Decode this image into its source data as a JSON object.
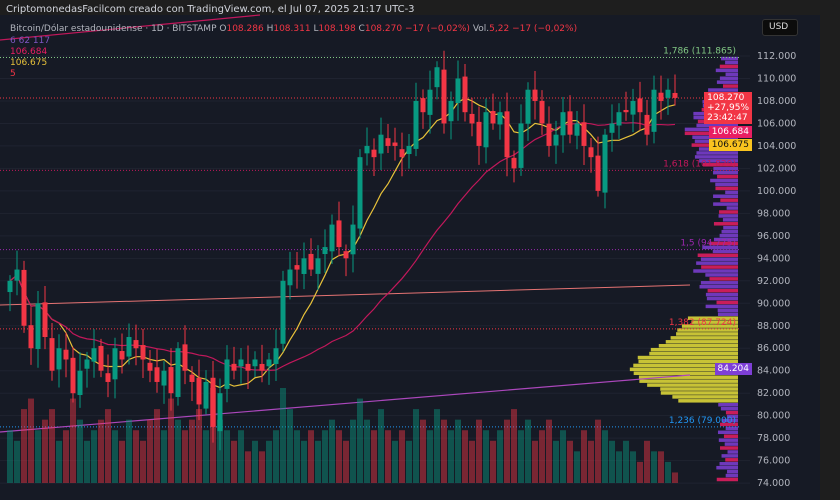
{
  "credit": "CriptomonedasFacilcom creado con TradingView.com, el Jul 07, 2025 21:17 UTC-3",
  "currency_button": "USD",
  "legend": {
    "symbol": "Bitcoin/Dólar estadounidense · 1D · BITSTAMP",
    "o_label": "O",
    "o": "108.286",
    "h_label": "H",
    "h": "108.311",
    "l_label": "L",
    "l": "108.198",
    "c_label": "C",
    "c": "108.270",
    "change": "−17 (−0,02%)",
    "vol_label": "Vol.",
    "vol": "5,22",
    "vol_change": "−17 (−0,02%)",
    "ind1": "6 62 117",
    "ind2": "106.684",
    "ind3": "106.675",
    "ind4": "5"
  },
  "price_tags": {
    "last": "108.270",
    "pct": "+27,95%",
    "countdown": "23:42:47",
    "ma_slow": "106.684",
    "ma_fast": "106.675",
    "poc": "84.204"
  },
  "colors": {
    "up": "#089981",
    "down": "#f23645",
    "ma_fast": "#e8c23a",
    "ma_slow": "#c2185b",
    "profile_purple": "#7e3fd6",
    "profile_pink": "#e91e63",
    "profile_yellow": "#e6e03a"
  },
  "chart_data": {
    "type": "candlestick",
    "y_ticks": [
      "112.000",
      "110.000",
      "108.000",
      "106.000",
      "104.000",
      "102.000",
      "100.000",
      "98.000",
      "96.000",
      "94.000",
      "92.000",
      "90.000",
      "88.000",
      "86.000",
      "84.000",
      "82.000",
      "80.000",
      "78.000",
      "76.000",
      "74.000"
    ],
    "ylim": [
      74,
      112
    ],
    "close": [
      92,
      93,
      88,
      86,
      90,
      87,
      84,
      86,
      85,
      82,
      84,
      85,
      86,
      84,
      83,
      86,
      85,
      87,
      86,
      85,
      84,
      83,
      84,
      82,
      86,
      84,
      83,
      81,
      83,
      79,
      82,
      85,
      84,
      85,
      84,
      85,
      84,
      85,
      86,
      92,
      93,
      93,
      94,
      93,
      94,
      95,
      97,
      95,
      94,
      97,
      103,
      104,
      103,
      105,
      104,
      104,
      103,
      104,
      108,
      107,
      109,
      111,
      106,
      108,
      110,
      107,
      106,
      104,
      107,
      106,
      107,
      103,
      102,
      106,
      109,
      108,
      106,
      104,
      105,
      107,
      105,
      106,
      104,
      103,
      100,
      105,
      106,
      107,
      107,
      108,
      107,
      105,
      109,
      108,
      109,
      108.27
    ],
    "volume": [
      5,
      4,
      7,
      8,
      5,
      6,
      7,
      4,
      5,
      8,
      6,
      4,
      5,
      6,
      7,
      5,
      4,
      6,
      5,
      4,
      6,
      7,
      5,
      8,
      6,
      5,
      6,
      7,
      5,
      9,
      6,
      5,
      4,
      5,
      3,
      4,
      3,
      4,
      5,
      9,
      7,
      5,
      4,
      5,
      4,
      5,
      6,
      5,
      4,
      6,
      8,
      6,
      5,
      7,
      5,
      4,
      5,
      4,
      7,
      6,
      5,
      7,
      6,
      5,
      6,
      5,
      4,
      6,
      5,
      4,
      5,
      6,
      7,
      5,
      6,
      4,
      5,
      6,
      4,
      5,
      4,
      3,
      5,
      4,
      6,
      5,
      4,
      3,
      4,
      3,
      2,
      4,
      3,
      3,
      2,
      1
    ],
    "fib_levels": [
      {
        "label": "1,786 (111.865)",
        "price": 111.865,
        "color": "#81c784"
      },
      {
        "label": "1,618 (101.829)",
        "price": 101.829,
        "color": "#c2185b"
      },
      {
        "label": "1,5 (94.775)",
        "price": 94.775,
        "color": "#9c27b0"
      },
      {
        "label": "1,382 (87.724)",
        "price": 87.724,
        "color": "#f23645"
      },
      {
        "label": "1,236 (79.000)",
        "price": 79.0,
        "color": "#2196f3"
      }
    ]
  }
}
